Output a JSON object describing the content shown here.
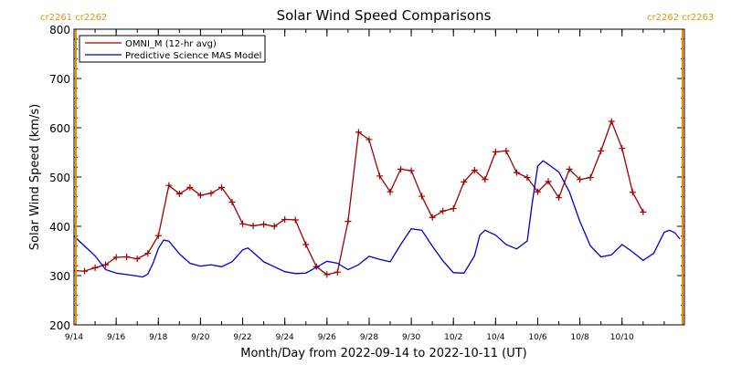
{
  "chart_data": {
    "type": "line",
    "title": "Solar Wind Speed Comparisons",
    "xlabel": "Month/Day from 2022-09-14 to 2022-10-11 (UT)",
    "ylabel": "Solar Wind Speed (km/s)",
    "ylim": [
      200,
      800
    ],
    "xlim": [
      "2022-09-14",
      "2022-10-11"
    ],
    "yticks": [
      "200",
      "300",
      "400",
      "500",
      "600",
      "700",
      "800"
    ],
    "xticks": [
      {
        "date": "2022-09-14",
        "label": "9/14"
      },
      {
        "date": "2022-09-16",
        "label": "9/16"
      },
      {
        "date": "2022-09-18",
        "label": "9/18"
      },
      {
        "date": "2022-09-20",
        "label": "9/20"
      },
      {
        "date": "2022-09-22",
        "label": "9/22"
      },
      {
        "date": "2022-09-24",
        "label": "9/24"
      },
      {
        "date": "2022-09-26",
        "label": "9/26"
      },
      {
        "date": "2022-09-28",
        "label": "9/28"
      },
      {
        "date": "2022-09-30",
        "label": "9/30"
      },
      {
        "date": "2022-10-02",
        "label": "10/2"
      },
      {
        "date": "2022-10-04",
        "label": "10/4"
      },
      {
        "date": "2022-10-06",
        "label": "10/6"
      },
      {
        "date": "2022-10-08",
        "label": "10/8"
      },
      {
        "date": "2022-10-10",
        "label": "10/10"
      }
    ],
    "legend_position": "top-left",
    "grid": false,
    "carrington_labels": {
      "left": "cr2261 cr2262",
      "right": "cr2262 cr2263"
    },
    "boundary_markers": [
      "2022-09-14",
      "2022-10-11"
    ],
    "series": [
      {
        "name": "OMNI_M (12-hr avg)",
        "color": "#a00000",
        "marker": "+",
        "points": [
          [
            "2022-09-14T00:00",
            310
          ],
          [
            "2022-09-14T12:00",
            309
          ],
          [
            "2022-09-15T00:00",
            316
          ],
          [
            "2022-09-15T12:00",
            322
          ],
          [
            "2022-09-16T00:00",
            337
          ],
          [
            "2022-09-16T12:00",
            338
          ],
          [
            "2022-09-17T00:00",
            334
          ],
          [
            "2022-09-17T12:00",
            345
          ],
          [
            "2022-09-18T00:00",
            381
          ],
          [
            "2022-09-18T12:00",
            483
          ],
          [
            "2022-09-19T00:00",
            466
          ],
          [
            "2022-09-19T12:00",
            479
          ],
          [
            "2022-09-20T00:00",
            463
          ],
          [
            "2022-09-20T12:00",
            467
          ],
          [
            "2022-09-21T00:00",
            479
          ],
          [
            "2022-09-21T12:00",
            449
          ],
          [
            "2022-09-22T00:00",
            405
          ],
          [
            "2022-09-22T12:00",
            401
          ],
          [
            "2022-09-23T00:00",
            404
          ],
          [
            "2022-09-23T12:00",
            400
          ],
          [
            "2022-09-24T00:00",
            414
          ],
          [
            "2022-09-24T12:00",
            413
          ],
          [
            "2022-09-25T00:00",
            363
          ],
          [
            "2022-09-25T12:00",
            318
          ],
          [
            "2022-09-26T00:00",
            302
          ],
          [
            "2022-09-26T12:00",
            307
          ],
          [
            "2022-09-27T00:00",
            410
          ],
          [
            "2022-09-27T12:00",
            591
          ],
          [
            "2022-09-28T00:00",
            576
          ],
          [
            "2022-09-28T12:00",
            502
          ],
          [
            "2022-09-29T00:00",
            470
          ],
          [
            "2022-09-29T12:00",
            516
          ],
          [
            "2022-09-30T00:00",
            513
          ],
          [
            "2022-09-30T12:00",
            461
          ],
          [
            "2022-10-01T00:00",
            418
          ],
          [
            "2022-10-01T12:00",
            431
          ],
          [
            "2022-10-02T00:00",
            436
          ],
          [
            "2022-10-02T12:00",
            490
          ],
          [
            "2022-10-03T00:00",
            514
          ],
          [
            "2022-10-03T12:00",
            495
          ],
          [
            "2022-10-04T00:00",
            551
          ],
          [
            "2022-10-04T12:00",
            553
          ],
          [
            "2022-10-05T00:00",
            509
          ],
          [
            "2022-10-05T12:00",
            499
          ],
          [
            "2022-10-06T00:00",
            470
          ],
          [
            "2022-10-06T12:00",
            491
          ],
          [
            "2022-10-07T00:00",
            458
          ],
          [
            "2022-10-07T12:00",
            516
          ],
          [
            "2022-10-08T00:00",
            495
          ],
          [
            "2022-10-08T12:00",
            499
          ],
          [
            "2022-10-09T00:00",
            553
          ],
          [
            "2022-10-09T12:00",
            613
          ],
          [
            "2022-10-10T00:00",
            558
          ],
          [
            "2022-10-10T12:00",
            469
          ],
          [
            "2022-10-11T00:00",
            429
          ]
        ]
      },
      {
        "name": "Predictive Science MAS Model",
        "color": "#0000c8",
        "marker": "none",
        "points": [
          [
            "2022-09-14T00:00",
            380
          ],
          [
            "2022-09-14T12:00",
            360
          ],
          [
            "2022-09-15T00:00",
            340
          ],
          [
            "2022-09-15T12:00",
            312
          ],
          [
            "2022-09-16T00:00",
            305
          ],
          [
            "2022-09-16T12:00",
            302
          ],
          [
            "2022-09-17T00:00",
            299
          ],
          [
            "2022-09-17T06:00",
            297
          ],
          [
            "2022-09-17T12:00",
            303
          ],
          [
            "2022-09-17T18:00",
            325
          ],
          [
            "2022-09-18T00:00",
            355
          ],
          [
            "2022-09-18T06:00",
            372
          ],
          [
            "2022-09-18T12:00",
            370
          ],
          [
            "2022-09-19T00:00",
            344
          ],
          [
            "2022-09-19T12:00",
            325
          ],
          [
            "2022-09-20T00:00",
            319
          ],
          [
            "2022-09-20T12:00",
            322
          ],
          [
            "2022-09-21T00:00",
            318
          ],
          [
            "2022-09-21T12:00",
            328
          ],
          [
            "2022-09-22T00:00",
            352
          ],
          [
            "2022-09-22T06:00",
            356
          ],
          [
            "2022-09-22T12:00",
            347
          ],
          [
            "2022-09-23T00:00",
            328
          ],
          [
            "2022-09-23T12:00",
            318
          ],
          [
            "2022-09-24T00:00",
            308
          ],
          [
            "2022-09-24T12:00",
            304
          ],
          [
            "2022-09-25T00:00",
            305
          ],
          [
            "2022-09-25T12:00",
            317
          ],
          [
            "2022-09-26T00:00",
            329
          ],
          [
            "2022-09-26T12:00",
            325
          ],
          [
            "2022-09-27T00:00",
            312
          ],
          [
            "2022-09-27T12:00",
            322
          ],
          [
            "2022-09-28T00:00",
            339
          ],
          [
            "2022-09-28T12:00",
            333
          ],
          [
            "2022-09-29T00:00",
            328
          ],
          [
            "2022-09-29T12:00",
            363
          ],
          [
            "2022-09-30T00:00",
            395
          ],
          [
            "2022-09-30T12:00",
            392
          ],
          [
            "2022-10-01T00:00",
            360
          ],
          [
            "2022-10-01T12:00",
            330
          ],
          [
            "2022-10-02T00:00",
            306
          ],
          [
            "2022-10-02T12:00",
            305
          ],
          [
            "2022-10-03T00:00",
            340
          ],
          [
            "2022-10-03T06:00",
            382
          ],
          [
            "2022-10-03T12:00",
            392
          ],
          [
            "2022-10-04T00:00",
            382
          ],
          [
            "2022-10-04T12:00",
            363
          ],
          [
            "2022-10-05T00:00",
            354
          ],
          [
            "2022-10-05T12:00",
            370
          ],
          [
            "2022-10-05T18:00",
            450
          ],
          [
            "2022-10-06T00:00",
            522
          ],
          [
            "2022-10-06T06:00",
            533
          ],
          [
            "2022-10-06T12:00",
            526
          ],
          [
            "2022-10-07T00:00",
            510
          ],
          [
            "2022-10-07T12:00",
            470
          ],
          [
            "2022-10-08T00:00",
            410
          ],
          [
            "2022-10-08T12:00",
            360
          ],
          [
            "2022-10-09T00:00",
            338
          ],
          [
            "2022-10-09T12:00",
            342
          ],
          [
            "2022-10-10T00:00",
            363
          ],
          [
            "2022-10-10T12:00",
            348
          ],
          [
            "2022-10-11T00:00",
            331
          ],
          [
            "2022-10-11T12:00",
            345
          ],
          [
            "2022-10-12T00:00",
            388
          ],
          [
            "2022-10-12T06:00",
            392
          ],
          [
            "2022-10-12T12:00",
            387
          ],
          [
            "2022-10-12T18:00",
            374
          ]
        ]
      }
    ]
  },
  "colors": {
    "omni": "#a00000",
    "model": "#0000c8",
    "boundary": "#f08c00"
  }
}
